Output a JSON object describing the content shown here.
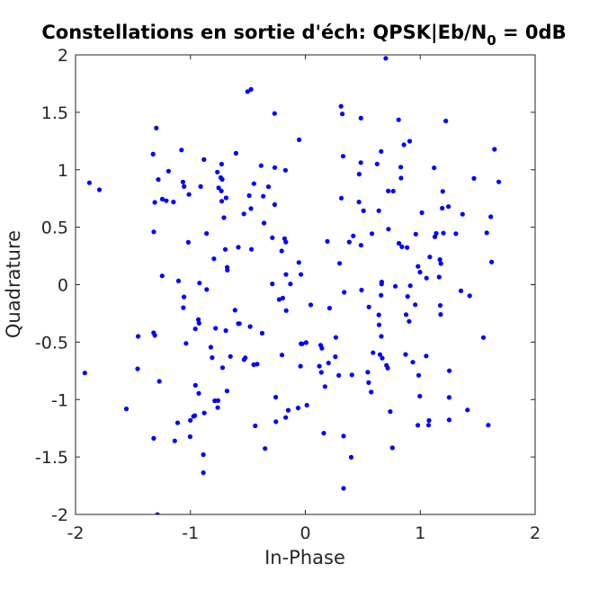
{
  "chart_data": {
    "type": "scatter",
    "title": {
      "main": "Constellations en sortie d'éch: QPSK|Eb/N",
      "subscript": "0",
      "suffix": " = 0dB"
    },
    "xlabel": "In-Phase",
    "ylabel": "Quadrature",
    "xlim": [
      -2,
      2
    ],
    "ylim": [
      -2,
      2
    ],
    "xticks": [
      -2,
      -1,
      0,
      1,
      2
    ],
    "xtick_labels": [
      "-2",
      "-1",
      "0",
      "1",
      "2"
    ],
    "yticks": [
      -2,
      -1.5,
      -1,
      -0.5,
      0,
      0.5,
      1,
      1.5,
      2
    ],
    "ytick_labels": [
      "-2",
      "-1.5",
      "-1",
      "-0.5",
      "0",
      "0.5",
      "1",
      "1.5",
      "2"
    ],
    "grid": false,
    "marker": "filled-dot",
    "series": [
      {
        "color": "#0000ff",
        "constellation_points": [
          {
            "x": 0.7071,
            "y": 0.7071
          },
          {
            "x": -0.7071,
            "y": 0.7071
          },
          {
            "x": -0.7071,
            "y": -0.7071
          },
          {
            "x": 0.7071,
            "y": -0.7071
          }
        ],
        "noise_sigma": 0.5,
        "points_per_symbol": 60
      }
    ]
  }
}
